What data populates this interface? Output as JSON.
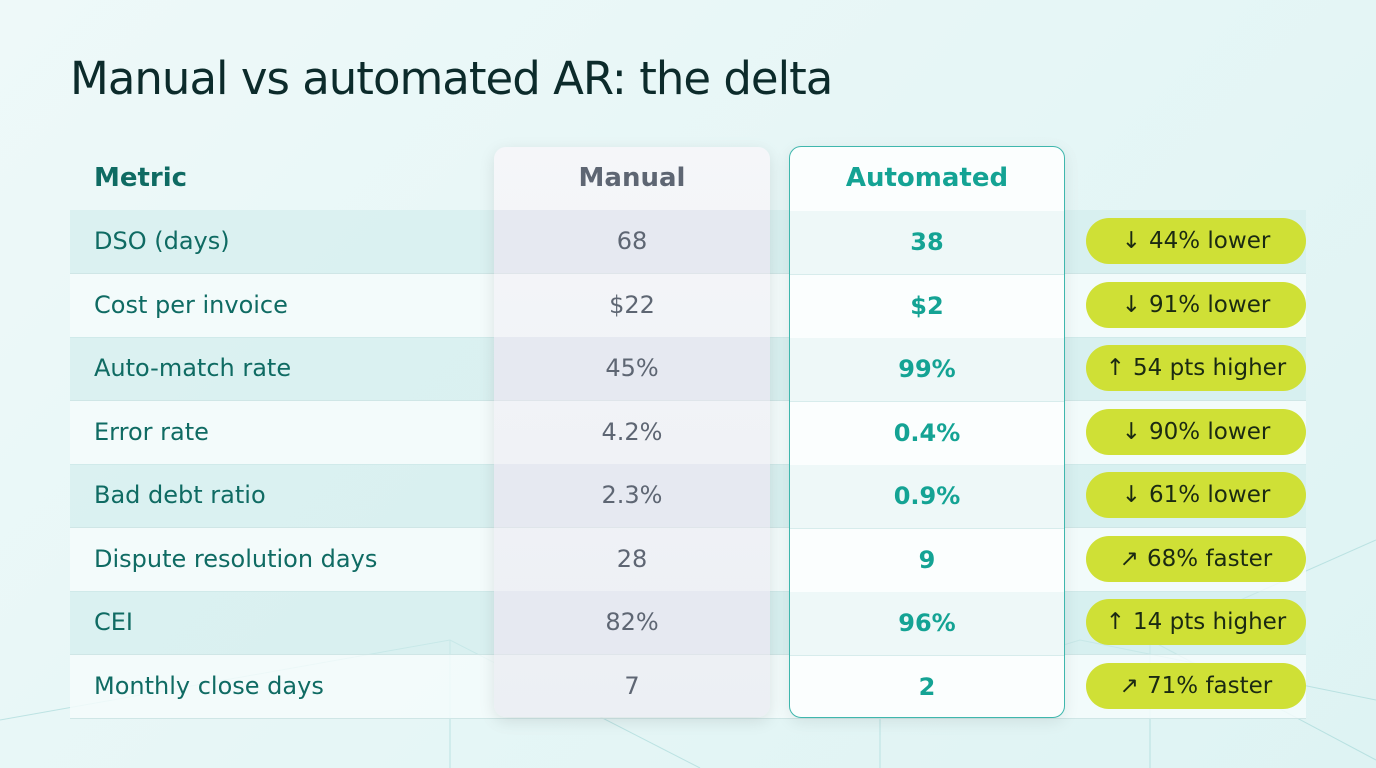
{
  "title": "Manual vs automated AR: the delta",
  "headers": {
    "metric": "Metric",
    "manual": "Manual",
    "automated": "Automated"
  },
  "colors": {
    "accent": "#14a394",
    "badge": "#cfe036",
    "title": "#0c2b2b"
  },
  "rows": [
    {
      "metric": "DSO (days)",
      "manual": "68",
      "automated": "38",
      "icon": "arrow-down-icon",
      "glyph": "↓",
      "delta": "44% lower"
    },
    {
      "metric": "Cost per invoice",
      "manual": "$22",
      "automated": "$2",
      "icon": "arrow-down-icon",
      "glyph": "↓",
      "delta": "91% lower"
    },
    {
      "metric": "Auto-match rate",
      "manual": "45%",
      "automated": "99%",
      "icon": "arrow-up-icon",
      "glyph": "↑",
      "delta": "54 pts higher"
    },
    {
      "metric": "Error rate",
      "manual": "4.2%",
      "automated": "0.4%",
      "icon": "arrow-down-icon",
      "glyph": "↓",
      "delta": "90% lower"
    },
    {
      "metric": "Bad debt ratio",
      "manual": "2.3%",
      "automated": "0.9%",
      "icon": "arrow-down-icon",
      "glyph": "↓",
      "delta": "61% lower"
    },
    {
      "metric": "Dispute resolution days",
      "manual": "28",
      "automated": "9",
      "icon": "speed-icon",
      "glyph": "↗",
      "delta": "68% faster"
    },
    {
      "metric": "CEI",
      "manual": "82%",
      "automated": "96%",
      "icon": "arrow-up-icon",
      "glyph": "↑",
      "delta": "14 pts higher"
    },
    {
      "metric": "Monthly close days",
      "manual": "7",
      "automated": "2",
      "icon": "speed-icon",
      "glyph": "↗",
      "delta": "71% faster"
    }
  ]
}
